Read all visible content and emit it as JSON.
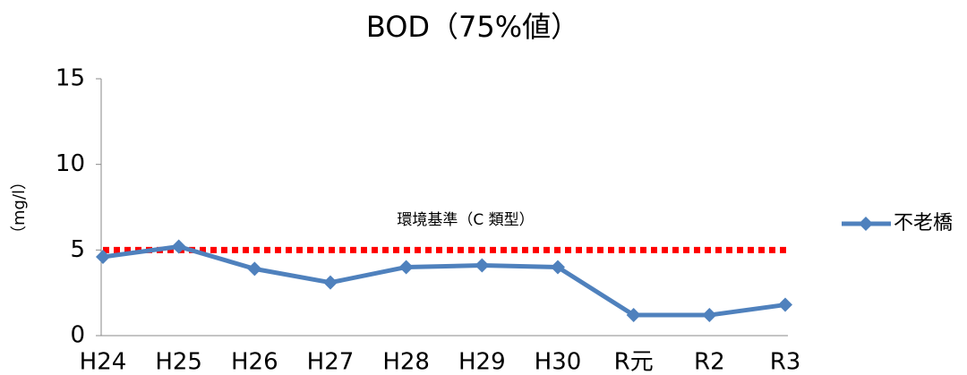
{
  "chart_data": {
    "type": "line",
    "title": "BOD（75%値）",
    "y_label": "（mg/l）",
    "categories": [
      "H24",
      "H25",
      "H26",
      "H27",
      "H28",
      "H29",
      "H30",
      "R元",
      "R2",
      "R3"
    ],
    "series": [
      {
        "name": "不老橋",
        "color": "#4f81bd",
        "values": [
          4.6,
          5.2,
          3.9,
          3.1,
          4.0,
          4.1,
          4.0,
          1.2,
          1.2,
          1.8
        ]
      }
    ],
    "reference_line": {
      "value": 5,
      "label": "環境基準（C 類型）",
      "color": "#ff0000"
    },
    "ylim": [
      0,
      15
    ],
    "yticks": [
      0,
      5,
      10,
      15
    ],
    "grid": false,
    "legend": "right"
  }
}
